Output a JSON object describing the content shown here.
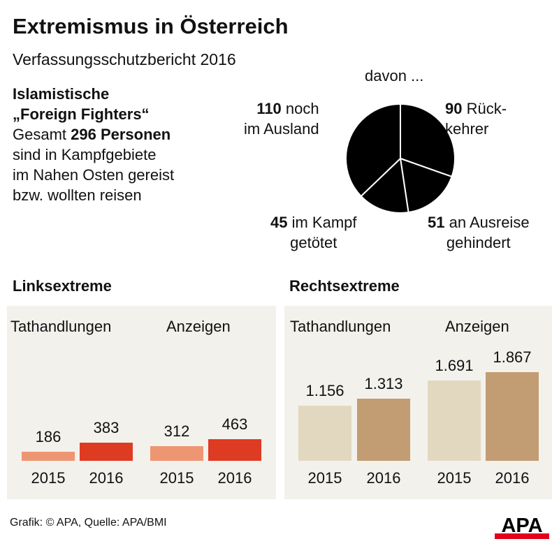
{
  "title": "Extremismus in Österreich",
  "subtitle": "Verfassungsschutzbericht 2016",
  "intro": {
    "line1": "Islamistische",
    "line2": "„Foreign Fighters“",
    "line3_pre": "Gesamt ",
    "line3_bold": "296 Personen",
    "line4": "sind in Kampfgebiete",
    "line5": "im Nahen Osten gereist",
    "line6": "bzw. wollten reisen"
  },
  "pie_heading": "davon ...",
  "chart_data": [
    {
      "type": "pie",
      "title": "davon ...",
      "total": 296,
      "slices": [
        {
          "value": 90,
          "label_bold": "90",
          "label": " Rück-",
          "label2": "kehrer",
          "color": "#000000"
        },
        {
          "value": 51,
          "label_bold": "51",
          "label": " an Ausreise",
          "label2": "gehindert",
          "color": "#000000"
        },
        {
          "value": 45,
          "label_bold": "45",
          "label": " im Kampf",
          "label2": "getötet",
          "color": "#000000"
        },
        {
          "value": 110,
          "label_bold": "110",
          "label": " noch",
          "label2": "im Ausland",
          "color": "#000000"
        }
      ]
    },
    {
      "type": "bar",
      "title": "Linksextreme",
      "groups": [
        "Tathandlungen",
        "Anzeigen"
      ],
      "categories": [
        "2015",
        "2016"
      ],
      "values": [
        [
          186,
          383
        ],
        [
          312,
          463
        ]
      ],
      "value_labels": [
        [
          "186",
          "383"
        ],
        [
          "312",
          "463"
        ]
      ],
      "colors": [
        "#ee9672",
        "#de3b23"
      ]
    },
    {
      "type": "bar",
      "title": "Rechtsextreme",
      "groups": [
        "Tathandlungen",
        "Anzeigen"
      ],
      "categories": [
        "2015",
        "2016"
      ],
      "values": [
        [
          1156,
          1313
        ],
        [
          1691,
          1867
        ]
      ],
      "value_labels": [
        [
          "1.156",
          "1.313"
        ],
        [
          "1.691",
          "1.867"
        ]
      ],
      "colors": [
        "#e2d8bf",
        "#c29c72"
      ]
    }
  ],
  "footer": "Grafik: © APA, Quelle: APA/BMI",
  "logo": "APA"
}
